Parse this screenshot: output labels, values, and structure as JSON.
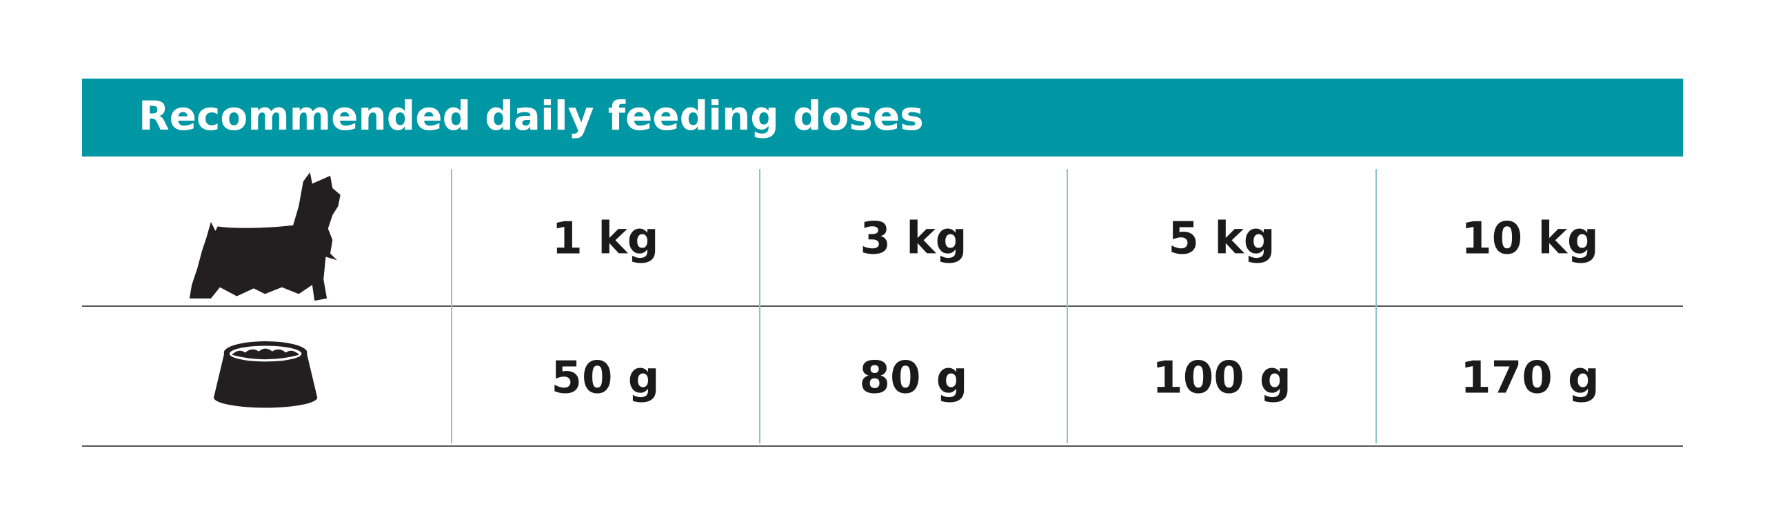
{
  "header": {
    "title": "Recommended daily feeding doses"
  },
  "table": {
    "rows": [
      [
        "1 kg",
        "3 kg",
        "5 kg",
        "10 kg"
      ],
      [
        "50 g",
        "80 g",
        "100 g",
        "170 g"
      ]
    ]
  }
}
